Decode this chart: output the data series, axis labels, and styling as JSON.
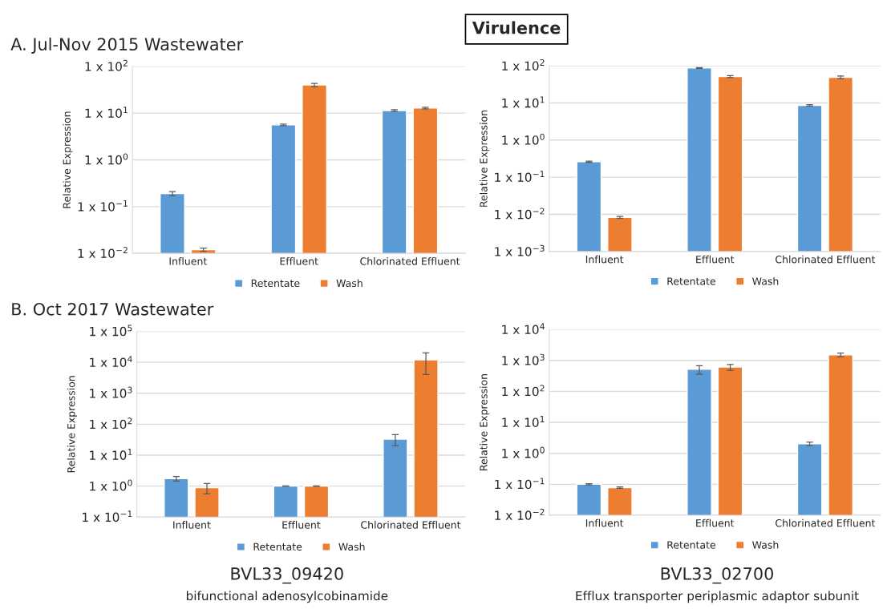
{
  "chart_data": [
    {
      "type": "bar",
      "log": "y",
      "grid": "y",
      "legend": "bottom",
      "ylabel": "Relative Expression",
      "annotations": [
        "A. Jul-Nov 2015 Wastewater",
        "Virulence"
      ],
      "categories": [
        "Influent",
        "Effluent",
        "Chlorinated Effluent"
      ],
      "ylim": [
        0.01,
        100
      ],
      "yticks": [
        {
          "value": 0.01,
          "label": "1 x 10$^{−2}$"
        },
        {
          "value": 0.1,
          "label": "1 x 10$^{−1}$"
        },
        {
          "value": 1,
          "label": "1 x 10$^{0}$"
        },
        {
          "value": 10,
          "label": "1 x 10$^{1}$"
        },
        {
          "value": 100,
          "label": "1 x 10$^{2}$"
        }
      ],
      "series": [
        {
          "name": "Retentate",
          "color": "#5b9bd5",
          "values": [
            0.19,
            5.6,
            11.3
          ],
          "errors": [
            0.02,
            0.2,
            0.5
          ]
        },
        {
          "name": "Wash",
          "color": "#ed7d31",
          "values": [
            0.012,
            40,
            12.8
          ],
          "errors": [
            0.001,
            3,
            0.5
          ]
        }
      ]
    },
    {
      "type": "bar",
      "log": "y",
      "grid": "y",
      "legend": "bottom",
      "ylabel": "Relative Expression",
      "categories": [
        "Influent",
        "Effluent",
        "Chlorinated Effluent"
      ],
      "ylim": [
        0.001,
        100
      ],
      "yticks": [
        {
          "value": 0.001,
          "label": "1 x 10$^{−3}$"
        },
        {
          "value": 0.01,
          "label": "1 x 10$^{−2}$"
        },
        {
          "value": 0.1,
          "label": "1 x 10$^{−1}$"
        },
        {
          "value": 1,
          "label": "1 x 10$^{0}$"
        },
        {
          "value": 10,
          "label": "1 x 10$^{1}$"
        },
        {
          "value": 100,
          "label": "1 x 10$^{2}$"
        }
      ],
      "series": [
        {
          "name": "Retentate",
          "color": "#5b9bd5",
          "values": [
            0.26,
            87,
            8.6
          ],
          "errors": [
            0.01,
            2,
            0.4
          ]
        },
        {
          "name": "Wash",
          "color": "#ed7d31",
          "values": [
            0.0083,
            51,
            49
          ],
          "errors": [
            0.0005,
            3,
            4
          ]
        }
      ]
    },
    {
      "type": "bar",
      "log": "y",
      "grid": "y",
      "legend": "bottom",
      "ylabel": "Relative Expression",
      "annotations": [
        "B. Oct 2017 Wastewater",
        "BVL33_09420",
        "bifunctional adenosylcobinamide"
      ],
      "categories": [
        "Influent",
        "Effluent",
        "Chlorinated Effluent"
      ],
      "ylim": [
        0.1,
        100000
      ],
      "yticks": [
        {
          "value": 0.1,
          "label": "1 x 10$^{−1}$"
        },
        {
          "value": 1,
          "label": "1 x 10$^{0}$"
        },
        {
          "value": 10,
          "label": "1 x 10$^{1}$"
        },
        {
          "value": 100,
          "label": "1 x 10$^{2}$"
        },
        {
          "value": 1000,
          "label": "1 x 10$^{3}$"
        },
        {
          "value": 10000,
          "label": "1 x 10$^{4}$"
        },
        {
          "value": 100000,
          "label": "1 x 10$^{5}$"
        }
      ],
      "series": [
        {
          "name": "Retentate",
          "color": "#5b9bd5",
          "values": [
            1.74,
            1.0,
            33
          ],
          "errors": [
            0.3,
            0.02,
            13
          ]
        },
        {
          "name": "Wash",
          "color": "#ed7d31",
          "values": [
            0.89,
            1.0,
            12000
          ],
          "errors": [
            0.33,
            0.02,
            8000
          ]
        }
      ]
    },
    {
      "type": "bar",
      "log": "y",
      "grid": "y",
      "legend": "bottom",
      "ylabel": "Relative Expression",
      "annotations": [
        "BVL33_02700",
        "Efflux transporter periplasmic adaptor subunit"
      ],
      "categories": [
        "Influent",
        "Effluent",
        "Chlorinated Effluent"
      ],
      "ylim": [
        0.01,
        10000
      ],
      "yticks": [
        {
          "value": 0.01,
          "label": "1 x 10$^{−2}$"
        },
        {
          "value": 0.1,
          "label": "1 x 10$^{−1}$"
        },
        {
          "value": 1,
          "label": "1 x 10$^{0}$"
        },
        {
          "value": 10,
          "label": "1 x 10$^{1}$"
        },
        {
          "value": 100,
          "label": "1 x 10$^{2}$"
        },
        {
          "value": 1000,
          "label": "1 x 10$^{3}$"
        },
        {
          "value": 10000,
          "label": "1 x 10$^{4}$"
        }
      ],
      "series": [
        {
          "name": "Retentate",
          "color": "#5b9bd5",
          "values": [
            0.1,
            520,
            2.04
          ],
          "errors": [
            0.005,
            160,
            0.25
          ]
        },
        {
          "name": "Wash",
          "color": "#ed7d31",
          "values": [
            0.078,
            610,
            1520
          ],
          "errors": [
            0.004,
            130,
            220
          ]
        }
      ]
    }
  ]
}
